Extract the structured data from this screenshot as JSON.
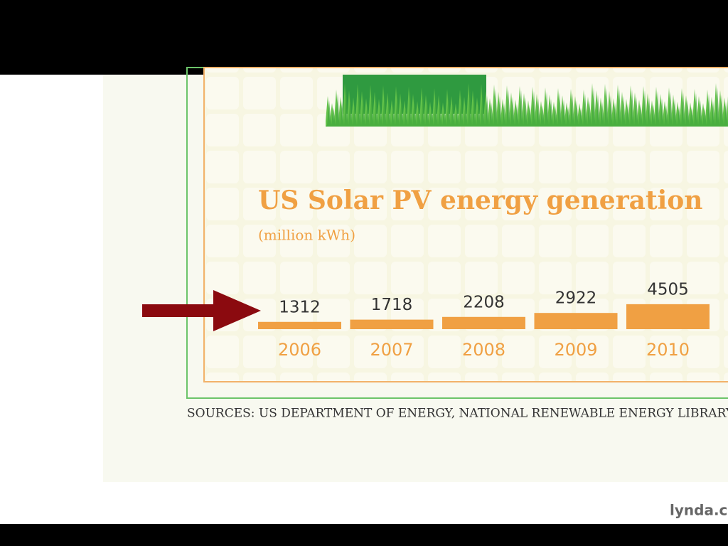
{
  "chart_data": {
    "type": "bar",
    "title": "US Solar PV energy generation",
    "subtitle": "(million kWh)",
    "categories": [
      "2006",
      "2007",
      "2008",
      "2009",
      "2010"
    ],
    "values": [
      1312,
      1718,
      2208,
      2922,
      4505
    ],
    "color": "#f0a043",
    "source": "SOURCES: US DEPARTMENT OF ENERGY, NATIONAL RENEWABLE ENERGY LIBRARY"
  },
  "watermark": "lynda.c"
}
